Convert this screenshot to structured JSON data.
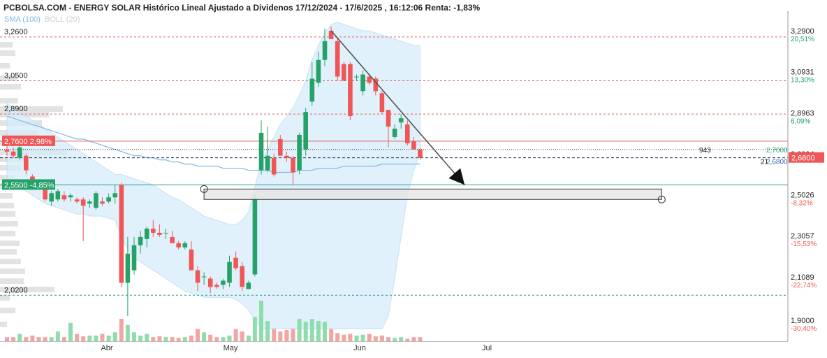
{
  "header": {
    "title": "PCBOLSA.COM - ENERGY SOLAR Histórico Lineal Ajustado a Dividenos 17/12/2024 - 17/6/2025 , 16:12:06 Renta: -1,83%",
    "sma_label": "SMA (100)",
    "boll_label": "BOLL (20)"
  },
  "colors": {
    "up": "#26a269",
    "down": "#f05656",
    "volume_up": "#8fdcae",
    "volume_down": "#f5a3a3",
    "bollinger_fill": "#d6ecfa",
    "sma": "#7fb8e6",
    "profile": "#e3e3e3",
    "red_line": "#e06060",
    "teal_line": "#2a9d8f",
    "trend_line": "#555555"
  },
  "chart_data": {
    "type": "candlestick",
    "title": "ENERGY SOLAR",
    "ylim": [
      1.86,
      3.33
    ],
    "left_price_ticks": [
      "3,2600",
      "3,0500",
      "2,8900",
      "2,0200"
    ],
    "left_ticks_values": [
      3.26,
      3.05,
      2.89,
      2.02
    ],
    "right_axis": [
      {
        "price": "3,2900",
        "pct": "20,51%",
        "value": 3.29,
        "color": "#26a269"
      },
      {
        "price": "3,0931",
        "pct": "13,30%",
        "value": 3.0931,
        "color": "#26a269"
      },
      {
        "price": "2,8963",
        "pct": "6,09%",
        "value": 2.8963,
        "color": "#26a269"
      },
      {
        "price": "2,6994",
        "pct": "",
        "value": 2.6994,
        "color": "#26a269"
      },
      {
        "price": "2,5026",
        "pct": "-8,32%",
        "value": 2.5026,
        "color": "#f05656"
      },
      {
        "price": "2,3057",
        "pct": "-15,53%",
        "value": 2.3057,
        "color": "#f05656"
      },
      {
        "price": "2,1089",
        "pct": "-22,74%",
        "value": 2.1089,
        "color": "#f05656"
      },
      {
        "price": "1,9000",
        "pct": "-30,40%",
        "value": 1.9,
        "color": "#f05656"
      }
    ],
    "reference_lines": [
      {
        "value": 3.26,
        "style": "dashed-red"
      },
      {
        "value": 3.05,
        "style": "dashed-red"
      },
      {
        "value": 2.89,
        "style": "dashed-red"
      },
      {
        "value": 2.76,
        "style": "solid-red"
      },
      {
        "value": 2.72,
        "style": "dotted-dark"
      },
      {
        "value": 2.68,
        "style": "dashed-navy"
      },
      {
        "value": 2.55,
        "style": "solid-teal"
      },
      {
        "value": 2.02,
        "style": "dashed-teal"
      }
    ],
    "left_tags": [
      {
        "label": "2,7600  2,98%",
        "value": 2.76,
        "color": "#f05656"
      },
      {
        "label": "2,5500  -4,85%",
        "value": 2.55,
        "color": "#26a269"
      }
    ],
    "last_price_tag": {
      "label": "2,6800",
      "value": 2.68,
      "color": "#f05656"
    },
    "inline_labels": {
      "counter": "943",
      "price_a": "2,7000",
      "price_b": "2,6800",
      "prefix": "21"
    },
    "months": [
      {
        "label": "Abr",
        "date": "2025-04-01"
      },
      {
        "label": "May",
        "date": "2025-05-01"
      },
      {
        "label": "Jun",
        "date": "2025-06-01"
      },
      {
        "label": "Jul",
        "date": "2025-07-01"
      }
    ],
    "candles": [
      {
        "o": 2.72,
        "h": 2.76,
        "l": 2.69,
        "c": 2.71
      },
      {
        "o": 2.71,
        "h": 2.73,
        "l": 2.68,
        "c": 2.69
      },
      {
        "o": 2.68,
        "h": 2.74,
        "l": 2.67,
        "c": 2.73
      },
      {
        "o": 2.69,
        "h": 2.7,
        "l": 2.6,
        "c": 2.62
      },
      {
        "o": 2.59,
        "h": 2.6,
        "l": 2.55,
        "c": 2.56
      },
      {
        "o": 2.55,
        "h": 2.56,
        "l": 2.53,
        "c": 2.54
      },
      {
        "o": 2.54,
        "h": 2.55,
        "l": 2.47,
        "c": 2.48
      },
      {
        "o": 2.47,
        "h": 2.52,
        "l": 2.45,
        "c": 2.51
      },
      {
        "o": 2.48,
        "h": 2.53,
        "l": 2.47,
        "c": 2.52
      },
      {
        "o": 2.5,
        "h": 2.52,
        "l": 2.47,
        "c": 2.48
      },
      {
        "o": 2.49,
        "h": 2.51,
        "l": 2.47,
        "c": 2.5
      },
      {
        "o": 2.48,
        "h": 2.49,
        "l": 2.46,
        "c": 2.47
      },
      {
        "o": 2.48,
        "h": 2.49,
        "l": 2.28,
        "c": 2.45
      },
      {
        "o": 2.46,
        "h": 2.48,
        "l": 2.44,
        "c": 2.47
      },
      {
        "o": 2.44,
        "h": 2.52,
        "l": 2.43,
        "c": 2.51
      },
      {
        "o": 2.47,
        "h": 2.49,
        "l": 2.45,
        "c": 2.46
      },
      {
        "o": 2.47,
        "h": 2.51,
        "l": 2.46,
        "c": 2.49
      },
      {
        "o": 2.49,
        "h": 2.55,
        "l": 2.46,
        "c": 2.51
      },
      {
        "o": 2.55,
        "h": 2.56,
        "l": 2.06,
        "c": 2.08
      },
      {
        "o": 2.08,
        "h": 2.3,
        "l": 1.92,
        "c": 2.22
      },
      {
        "o": 2.14,
        "h": 2.3,
        "l": 2.12,
        "c": 2.26
      },
      {
        "o": 2.26,
        "h": 2.33,
        "l": 2.22,
        "c": 2.3
      },
      {
        "o": 2.29,
        "h": 2.35,
        "l": 2.25,
        "c": 2.34
      },
      {
        "o": 2.34,
        "h": 2.38,
        "l": 2.3,
        "c": 2.32
      },
      {
        "o": 2.32,
        "h": 2.36,
        "l": 2.3,
        "c": 2.31
      },
      {
        "o": 2.32,
        "h": 2.34,
        "l": 2.29,
        "c": 2.32
      },
      {
        "o": 2.3,
        "h": 2.33,
        "l": 2.27,
        "c": 2.27
      },
      {
        "o": 2.27,
        "h": 2.28,
        "l": 2.24,
        "c": 2.25
      },
      {
        "o": 2.25,
        "h": 2.28,
        "l": 2.24,
        "c": 2.27
      },
      {
        "o": 2.24,
        "h": 2.28,
        "l": 2.14,
        "c": 2.14
      },
      {
        "o": 2.14,
        "h": 2.16,
        "l": 2.04,
        "c": 2.08
      },
      {
        "o": 2.11,
        "h": 2.13,
        "l": 2.07,
        "c": 2.11
      },
      {
        "o": 2.1,
        "h": 2.11,
        "l": 2.03,
        "c": 2.06
      },
      {
        "o": 2.07,
        "h": 2.08,
        "l": 2.05,
        "c": 2.06
      },
      {
        "o": 2.07,
        "h": 2.1,
        "l": 2.05,
        "c": 2.09
      },
      {
        "o": 2.08,
        "h": 2.21,
        "l": 2.06,
        "c": 2.18
      },
      {
        "o": 2.2,
        "h": 2.23,
        "l": 2.14,
        "c": 2.15
      },
      {
        "o": 2.16,
        "h": 2.18,
        "l": 2.04,
        "c": 2.06
      },
      {
        "o": 2.05,
        "h": 2.09,
        "l": 2.05,
        "c": 2.08
      },
      {
        "o": 2.12,
        "h": 2.5,
        "l": 2.11,
        "c": 2.48
      },
      {
        "o": 2.62,
        "h": 2.86,
        "l": 2.6,
        "c": 2.8
      },
      {
        "o": 2.62,
        "h": 2.83,
        "l": 2.61,
        "c": 2.69
      },
      {
        "o": 2.68,
        "h": 2.7,
        "l": 2.59,
        "c": 2.6
      },
      {
        "o": 2.77,
        "h": 2.79,
        "l": 2.69,
        "c": 2.69
      },
      {
        "o": 2.69,
        "h": 2.71,
        "l": 2.66,
        "c": 2.68
      },
      {
        "o": 2.68,
        "h": 2.69,
        "l": 2.55,
        "c": 2.61
      },
      {
        "o": 2.62,
        "h": 2.8,
        "l": 2.6,
        "c": 2.79
      },
      {
        "o": 2.72,
        "h": 2.92,
        "l": 2.69,
        "c": 2.9
      },
      {
        "o": 2.95,
        "h": 3.14,
        "l": 2.93,
        "c": 3.06
      },
      {
        "o": 3.04,
        "h": 3.19,
        "l": 3.02,
        "c": 3.15
      },
      {
        "o": 3.15,
        "h": 3.3,
        "l": 3.12,
        "c": 3.24
      },
      {
        "o": 3.29,
        "h": 3.31,
        "l": 3.25,
        "c": 3.25
      },
      {
        "o": 3.24,
        "h": 3.26,
        "l": 3.05,
        "c": 3.07
      },
      {
        "o": 3.13,
        "h": 3.14,
        "l": 3.05,
        "c": 3.05
      },
      {
        "o": 3.13,
        "h": 3.14,
        "l": 2.86,
        "c": 2.88
      },
      {
        "o": 3.07,
        "h": 3.08,
        "l": 3.05,
        "c": 3.07
      },
      {
        "o": 3.0,
        "h": 3.1,
        "l": 2.98,
        "c": 3.08
      },
      {
        "o": 3.07,
        "h": 3.08,
        "l": 3.03,
        "c": 3.04
      },
      {
        "o": 3.06,
        "h": 3.07,
        "l": 2.98,
        "c": 3.0
      },
      {
        "o": 2.99,
        "h": 3.0,
        "l": 2.89,
        "c": 2.9
      },
      {
        "o": 2.91,
        "h": 2.91,
        "l": 2.73,
        "c": 2.83
      },
      {
        "o": 2.78,
        "h": 2.84,
        "l": 2.77,
        "c": 2.82
      },
      {
        "o": 2.85,
        "h": 2.89,
        "l": 2.82,
        "c": 2.87
      },
      {
        "o": 2.84,
        "h": 2.86,
        "l": 2.74,
        "c": 2.75
      },
      {
        "o": 2.76,
        "h": 2.78,
        "l": 2.72,
        "c": 2.72
      },
      {
        "o": 2.72,
        "h": 2.73,
        "l": 2.67,
        "c": 2.68
      }
    ],
    "volume": [
      0.1,
      0.1,
      0.18,
      0.1,
      0.14,
      0.1,
      0.1,
      0.1,
      0.24,
      0.1,
      0.45,
      0.18,
      0.12,
      0.14,
      0.14,
      0.18,
      0.14,
      0.22,
      0.55,
      0.4,
      0.22,
      0.14,
      0.18,
      0.1,
      0.12,
      0.1,
      0.1,
      0.08,
      0.1,
      0.14,
      0.3,
      0.22,
      0.16,
      0.1,
      0.1,
      0.14,
      0.3,
      0.24,
      0.14,
      0.6,
      1.0,
      0.5,
      0.3,
      0.24,
      0.28,
      0.3,
      0.55,
      0.48,
      0.55,
      0.5,
      0.48,
      0.3,
      0.2,
      0.16,
      0.18,
      0.14,
      0.16,
      0.18,
      0.12,
      0.14,
      0.1,
      0.08,
      0.1,
      0.06,
      0.1,
      0.1
    ],
    "bollinger_upper": [
      2.94,
      2.92,
      2.9,
      2.88,
      2.86,
      2.84,
      2.82,
      2.8,
      2.78,
      2.76,
      2.74,
      2.72,
      2.7,
      2.68,
      2.66,
      2.64,
      2.62,
      2.6,
      2.6,
      2.59,
      2.58,
      2.57,
      2.56,
      2.55,
      2.53,
      2.51,
      2.49,
      2.48,
      2.46,
      2.44,
      2.42,
      2.4,
      2.39,
      2.38,
      2.37,
      2.36,
      2.36,
      2.38,
      2.42,
      2.54,
      2.66,
      2.72,
      2.78,
      2.84,
      2.88,
      2.92,
      2.98,
      3.05,
      3.15,
      3.22,
      3.28,
      3.32,
      3.33,
      3.32,
      3.31,
      3.3,
      3.29,
      3.29,
      3.28,
      3.27,
      3.26,
      3.25,
      3.24,
      3.23,
      3.22,
      3.22
    ],
    "bollinger_lower": [
      2.58,
      2.56,
      2.54,
      2.52,
      2.5,
      2.48,
      2.46,
      2.45,
      2.44,
      2.43,
      2.42,
      2.41,
      2.41,
      2.4,
      2.4,
      2.4,
      2.39,
      2.38,
      2.3,
      2.24,
      2.2,
      2.18,
      2.16,
      2.14,
      2.12,
      2.1,
      2.08,
      2.06,
      2.04,
      2.03,
      2.02,
      2.01,
      2.01,
      2.01,
      2.01,
      2.01,
      2.0,
      1.98,
      1.95,
      1.9,
      1.86,
      1.86,
      1.86,
      1.86,
      1.86,
      1.86,
      1.86,
      1.86,
      1.86,
      1.86,
      1.86,
      1.86,
      1.86,
      1.86,
      1.86,
      1.86,
      1.86,
      1.86,
      1.86,
      1.86,
      1.92,
      2.1,
      2.3,
      2.5,
      2.62,
      2.7
    ],
    "sma100": [
      2.88,
      2.87,
      2.86,
      2.85,
      2.84,
      2.83,
      2.82,
      2.81,
      2.8,
      2.79,
      2.78,
      2.77,
      2.77,
      2.76,
      2.75,
      2.74,
      2.73,
      2.72,
      2.71,
      2.7,
      2.69,
      2.69,
      2.68,
      2.68,
      2.67,
      2.67,
      2.66,
      2.66,
      2.65,
      2.65,
      2.64,
      2.64,
      2.64,
      2.64,
      2.63,
      2.63,
      2.63,
      2.63,
      2.62,
      2.62,
      2.62,
      2.62,
      2.61,
      2.61,
      2.61,
      2.61,
      2.62,
      2.62,
      2.62,
      2.63,
      2.63,
      2.63,
      2.63,
      2.64,
      2.64,
      2.64,
      2.64,
      2.64,
      2.64,
      2.65,
      2.65,
      2.65,
      2.65,
      2.65,
      2.65,
      2.65
    ],
    "trend_line": {
      "from": {
        "index": 51,
        "value": 3.29
      },
      "to": {
        "index": 72,
        "value": 2.55
      }
    },
    "rectangle": {
      "from_index": 31,
      "to_index": 103,
      "top": 2.53,
      "bottom": 2.48
    }
  }
}
